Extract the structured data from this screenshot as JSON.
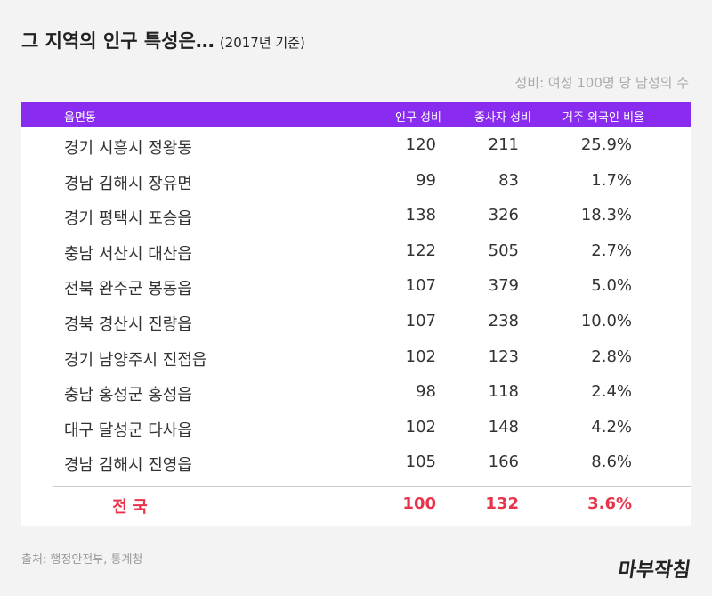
{
  "header": {
    "title": "그 지역의 인구 특성은…",
    "subtitle": "(2017년 기준)",
    "note": "성비: 여성 100명 당 남성의 수"
  },
  "table": {
    "columns": [
      "읍면동",
      "인구 성비",
      "종사자 성비",
      "거주 외국인 비율"
    ],
    "rows": [
      [
        "경기 시흥시 정왕동",
        "120",
        "211",
        "25.9%"
      ],
      [
        "경남 김해시 장유면",
        "99",
        "83",
        "1.7%"
      ],
      [
        "경기 평택시 포승읍",
        "138",
        "326",
        "18.3%"
      ],
      [
        "충남 서산시 대산읍",
        "122",
        "505",
        "2.7%"
      ],
      [
        "전북 완주군 봉동읍",
        "107",
        "379",
        "5.0%"
      ],
      [
        "경북 경산시 진량읍",
        "107",
        "238",
        "10.0%"
      ],
      [
        "경기 남양주시 진접읍",
        "102",
        "123",
        "2.8%"
      ],
      [
        "충남 홍성군 홍성읍",
        "98",
        "118",
        "2.4%"
      ],
      [
        "대구 달성군 다사읍",
        "102",
        "148",
        "4.2%"
      ],
      [
        "경남 김해시 진영읍",
        "105",
        "166",
        "8.6%"
      ]
    ],
    "total": [
      "전 국",
      "100",
      "132",
      "3.6%"
    ]
  },
  "footer": {
    "source": "출처: 행정안전부, 통계청",
    "logo": "마부작침"
  }
}
